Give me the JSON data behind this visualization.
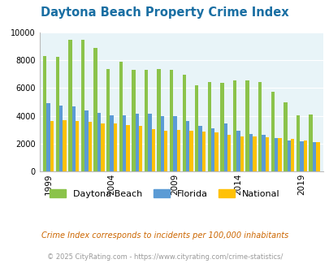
{
  "title": "Daytona Beach Property Crime Index",
  "years": [
    1999,
    2000,
    2001,
    2002,
    2003,
    2004,
    2005,
    2006,
    2007,
    2008,
    2009,
    2010,
    2011,
    2012,
    2013,
    2014,
    2015,
    2016,
    2017,
    2018,
    2019,
    2020
  ],
  "daytona": [
    8300,
    8200,
    9450,
    9450,
    8850,
    7350,
    7900,
    7300,
    7300,
    7350,
    7300,
    6950,
    6200,
    6400,
    6350,
    6550,
    6550,
    6400,
    5700,
    4950,
    4050,
    4100
  ],
  "florida": [
    4900,
    4750,
    4650,
    4400,
    4200,
    4050,
    4050,
    4150,
    4150,
    3950,
    3950,
    3600,
    3300,
    3100,
    3450,
    2900,
    2700,
    2650,
    2400,
    2200,
    2150,
    2100
  ],
  "national": [
    3600,
    3700,
    3600,
    3550,
    3450,
    3450,
    3350,
    3250,
    3050,
    2950,
    3000,
    2950,
    2850,
    2800,
    2650,
    2500,
    2500,
    2450,
    2400,
    2350,
    2200,
    2100
  ],
  "bar_width": 0.28,
  "color_daytona": "#8bc34a",
  "color_florida": "#5b9bd5",
  "color_national": "#ffc107",
  "bg_color": "#e8f4f8",
  "ylim": [
    0,
    10000
  ],
  "yticks": [
    0,
    2000,
    4000,
    6000,
    8000,
    10000
  ],
  "xlabel_ticks": [
    1999,
    2004,
    2009,
    2014,
    2019
  ],
  "legend_labels": [
    "Daytona Beach",
    "Florida",
    "National"
  ],
  "footnote1": "Crime Index corresponds to incidents per 100,000 inhabitants",
  "footnote2": "© 2025 CityRating.com - https://www.cityrating.com/crime-statistics/",
  "title_color": "#1a6fa3",
  "footnote1_color": "#cc6600",
  "footnote2_color": "#999999"
}
